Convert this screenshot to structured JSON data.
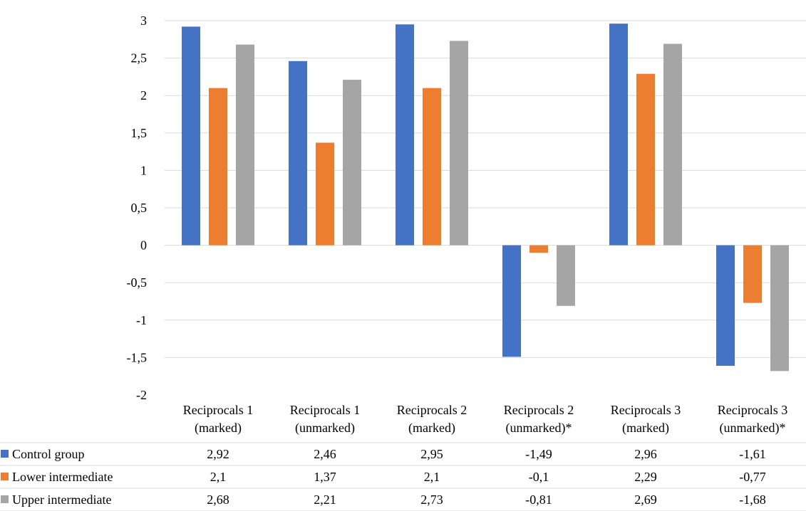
{
  "chart_data": {
    "type": "bar",
    "title": "",
    "xlabel": "",
    "ylabel": "",
    "ylim": [
      -2,
      3
    ],
    "yticks": [
      3,
      2.5,
      2,
      1.5,
      1,
      0.5,
      0,
      -0.5,
      -1,
      -1.5,
      -2
    ],
    "ytick_labels": [
      "3",
      "2,5",
      "2",
      "1,5",
      "1",
      "0,5",
      "0",
      "-0,5",
      "-1",
      "-1,5",
      "-2"
    ],
    "grid": true,
    "legend": "data-table-below",
    "categories": [
      [
        "Reciprocals 1",
        "(marked)"
      ],
      [
        "Reciprocals 1",
        "(unmarked)"
      ],
      [
        "Reciprocals 2",
        "(marked)"
      ],
      [
        "Reciprocals 2",
        "(unmarked)*"
      ],
      [
        "Reciprocals 3",
        "(marked)"
      ],
      [
        "Reciprocals 3",
        "(unmarked)*"
      ]
    ],
    "series": [
      {
        "name": "Control group",
        "color": "#4472c4",
        "values": [
          2.92,
          2.46,
          2.95,
          -1.49,
          2.96,
          -1.61
        ],
        "labels": [
          "2,92",
          "2,46",
          "2,95",
          "-1,49",
          "2,96",
          "-1,61"
        ]
      },
      {
        "name": "Lower intermediate",
        "color": "#ed7d31",
        "values": [
          2.1,
          1.37,
          2.1,
          -0.1,
          2.29,
          -0.77
        ],
        "labels": [
          "2,1",
          "1,37",
          "2,1",
          "-0,1",
          "2,29",
          "-0,77"
        ]
      },
      {
        "name": "Upper intermediate",
        "color": "#a5a5a5",
        "values": [
          2.68,
          2.21,
          2.73,
          -0.81,
          2.69,
          -1.68
        ],
        "labels": [
          "2,68",
          "2,21",
          "2,73",
          "-0,81",
          "2,69",
          "-1,68"
        ]
      }
    ]
  }
}
